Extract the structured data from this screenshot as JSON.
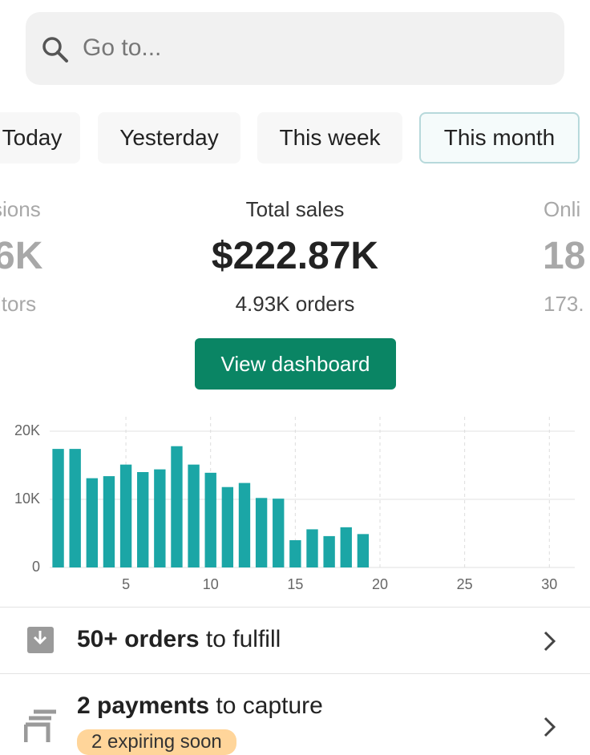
{
  "search": {
    "placeholder": "Go to..."
  },
  "tabs": [
    "Today",
    "Yesterday",
    "This week",
    "This month"
  ],
  "metrics": [
    {
      "title": "sions",
      "value": "6K",
      "sub": "itors"
    },
    {
      "title": "Total sales",
      "value": "$222.87K",
      "sub": "4.93K orders"
    },
    {
      "title": "Onli",
      "value": "18",
      "sub": "173."
    }
  ],
  "button": "View dashboard",
  "chart_data": {
    "type": "bar",
    "x": [
      1,
      2,
      3,
      4,
      5,
      6,
      7,
      8,
      9,
      10,
      11,
      12,
      13,
      14,
      15,
      16,
      17,
      18,
      19
    ],
    "values": [
      17400,
      17400,
      13100,
      13400,
      15100,
      14000,
      14400,
      17800,
      15100,
      13900,
      11800,
      12400,
      10200,
      10100,
      4000,
      5600,
      4600,
      5900,
      4900
    ],
    "color": "#1ba6a6",
    "xlim": [
      0.5,
      31.5
    ],
    "xticks": [
      5,
      10,
      15,
      20,
      25,
      30
    ],
    "ylim": [
      0,
      20000
    ],
    "yticks": [
      0,
      {
        "value": 10000,
        "label": "10K"
      },
      {
        "value": 20000,
        "label": "20K"
      }
    ],
    "grid": true
  },
  "tasks": [
    {
      "bold": "50+ orders",
      "rest": " to fulfill"
    },
    {
      "bold": "2 payments",
      "rest": " to capture",
      "badge": "2 expiring soon"
    }
  ]
}
